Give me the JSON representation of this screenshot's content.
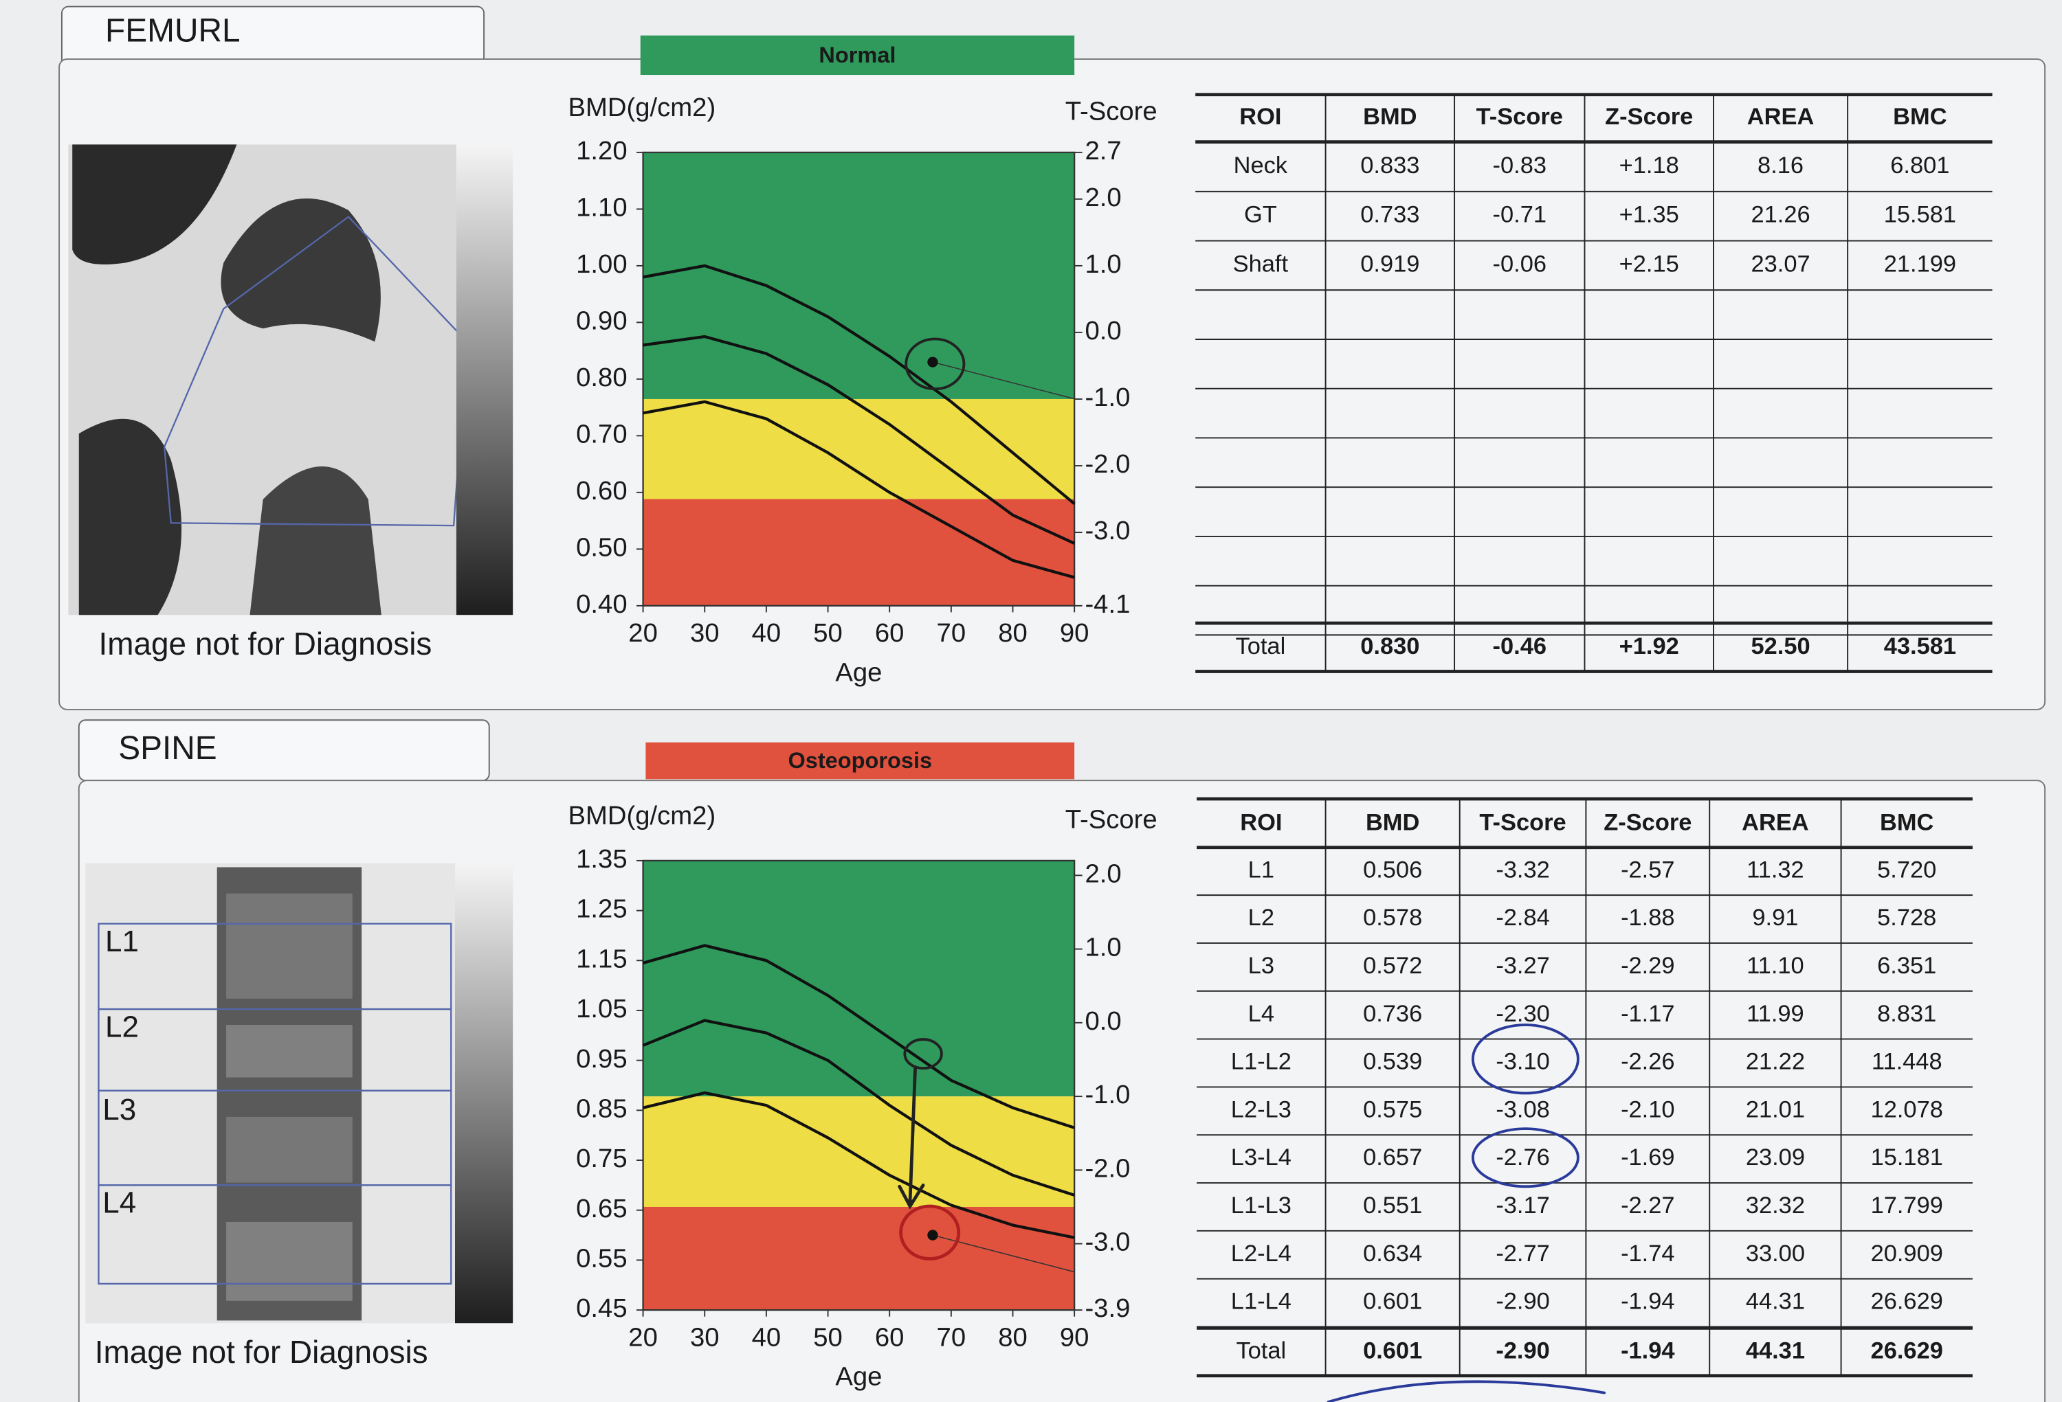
{
  "chart_data": [
    {
      "type": "line",
      "y_label": "BMD(g/cm2)",
      "y2_label": "T-Score",
      "x_label": "Age",
      "xlim": [
        20,
        90
      ],
      "xticks": [
        20,
        30,
        40,
        50,
        60,
        70,
        80,
        90
      ],
      "ylim": [
        0.4,
        1.2
      ],
      "yticks": [
        {
          "value": 1.2,
          "label": "1.20"
        },
        {
          "value": 1.1,
          "label": "1.10"
        },
        {
          "value": 1.0,
          "label": "1.00"
        },
        {
          "value": 0.9,
          "label": "0.90"
        },
        {
          "value": 0.8,
          "label": "0.80"
        },
        {
          "value": 0.7,
          "label": "0.70"
        },
        {
          "value": 0.6,
          "label": "0.60"
        },
        {
          "value": 0.5,
          "label": "0.50"
        },
        {
          "value": 0.4,
          "label": "0.40"
        }
      ],
      "y2lim": [
        -4.1,
        2.7
      ],
      "y2ticks": [
        2.7,
        {
          "value": 2,
          "label": "2.0"
        },
        {
          "value": 1,
          "label": "1.0"
        },
        {
          "value": 0,
          "label": "0.0"
        },
        {
          "value": -1,
          "label": "-1.0"
        },
        {
          "value": -2,
          "label": "-2.0"
        },
        {
          "value": -3,
          "label": "-3.0"
        },
        -4.1
      ],
      "zones": [
        {
          "from": -1.0,
          "to": 2.7,
          "color": "#2f9a5c"
        },
        {
          "from": -2.5,
          "to": -1.0,
          "color": "#efdd45"
        },
        {
          "from": -4.1,
          "to": -2.5,
          "color": "#e0523e"
        }
      ],
      "x": [
        20,
        30,
        40,
        50,
        60,
        70,
        80,
        90
      ],
      "series": [
        {
          "color": "#111111",
          "values": [
            0.98,
            1.0,
            0.965,
            0.91,
            0.84,
            0.76,
            0.67,
            0.58
          ]
        },
        {
          "color": "#111111",
          "values": [
            0.86,
            0.875,
            0.845,
            0.79,
            0.72,
            0.64,
            0.56,
            0.51
          ]
        },
        {
          "color": "#111111",
          "values": [
            0.74,
            0.76,
            0.73,
            0.67,
            0.6,
            0.54,
            0.48,
            0.45
          ]
        }
      ],
      "patient": {
        "color": "#111111",
        "x": [
          67
        ],
        "values": [
          0.83
        ]
      }
    },
    {
      "type": "line",
      "y_label": "BMD(g/cm2)",
      "y2_label": "T-Score",
      "x_label": "Age",
      "xlim": [
        20,
        90
      ],
      "xticks": [
        20,
        30,
        40,
        50,
        60,
        70,
        80,
        90
      ],
      "ylim": [
        0.45,
        1.35
      ],
      "yticks": [
        1.35,
        1.25,
        1.15,
        1.05,
        0.95,
        0.85,
        0.75,
        0.65,
        0.55,
        0.45
      ],
      "y2lim": [
        -3.9,
        2.2
      ],
      "y2ticks": [
        {
          "value": 2,
          "label": "2.0"
        },
        {
          "value": 1,
          "label": "1.0"
        },
        {
          "value": 0,
          "label": "0.0"
        },
        {
          "value": -1,
          "label": "-1.0"
        },
        {
          "value": -2,
          "label": "-2.0"
        },
        {
          "value": -3,
          "label": "-3.0"
        },
        -3.9
      ],
      "zones": [
        {
          "from": -1.0,
          "to": 2.2,
          "color": "#2f9a5c"
        },
        {
          "from": -2.5,
          "to": -1.0,
          "color": "#efdd45"
        },
        {
          "from": -3.9,
          "to": -2.5,
          "color": "#e0523e"
        }
      ],
      "x": [
        20,
        30,
        40,
        50,
        60,
        70,
        80,
        90
      ],
      "series": [
        {
          "color": "#111111",
          "values": [
            1.145,
            1.18,
            1.15,
            1.08,
            0.995,
            0.91,
            0.855,
            0.815
          ]
        },
        {
          "color": "#111111",
          "values": [
            0.98,
            1.03,
            1.005,
            0.95,
            0.86,
            0.78,
            0.72,
            0.68
          ]
        },
        {
          "color": "#111111",
          "values": [
            0.855,
            0.885,
            0.86,
            0.795,
            0.72,
            0.66,
            0.62,
            0.595
          ]
        }
      ],
      "patient": {
        "color": "#111111",
        "x": [
          67
        ],
        "values": [
          0.6
        ]
      }
    }
  ],
  "panels": [
    {
      "title": "FEMURL",
      "status": "Normal",
      "status_color": "#2f9a5c",
      "image_note": "Image not for Diagnosis",
      "table": {
        "header": [
          "ROI",
          "BMD",
          "T-Score",
          "Z-Score",
          "AREA",
          "BMC"
        ],
        "rows": [
          [
            "Neck",
            "0.833",
            "-0.83",
            "+1.18",
            "8.16",
            "6.801"
          ],
          [
            "GT",
            "0.733",
            "-0.71",
            "+1.35",
            "21.26",
            "15.581"
          ],
          [
            "Shaft",
            "0.919",
            "-0.06",
            "+2.15",
            "23.07",
            "21.199"
          ]
        ],
        "total": [
          "Total",
          "0.830",
          "-0.46",
          "+1.92",
          "52.50",
          "43.581"
        ]
      }
    },
    {
      "title": "SPINE",
      "status": "Osteoporosis",
      "status_color": "#e0523e",
      "image_note": "Image not for Diagnosis",
      "image_labels": [
        "L1",
        "L2",
        "L3",
        "L4"
      ],
      "table": {
        "header": [
          "ROI",
          "BMD",
          "T-Score",
          "Z-Score",
          "AREA",
          "BMC"
        ],
        "rows": [
          [
            "L1",
            "0.506",
            "-3.32",
            "-2.57",
            "11.32",
            "5.720"
          ],
          [
            "L2",
            "0.578",
            "-2.84",
            "-1.88",
            "9.91",
            "5.728"
          ],
          [
            "L3",
            "0.572",
            "-3.27",
            "-2.29",
            "11.10",
            "6.351"
          ],
          [
            "L4",
            "0.736",
            "-2.30",
            "-1.17",
            "11.99",
            "8.831"
          ],
          [
            "L1-L2",
            "0.539",
            "-3.10",
            "-2.26",
            "21.22",
            "11.448"
          ],
          [
            "L2-L3",
            "0.575",
            "-3.08",
            "-2.10",
            "21.01",
            "12.078"
          ],
          [
            "L3-L4",
            "0.657",
            "-2.76",
            "-1.69",
            "23.09",
            "15.181"
          ],
          [
            "L1-L3",
            "0.551",
            "-3.17",
            "-2.27",
            "32.32",
            "17.799"
          ],
          [
            "L2-L4",
            "0.634",
            "-2.77",
            "-1.74",
            "33.00",
            "20.909"
          ],
          [
            "L1-L4",
            "0.601",
            "-2.90",
            "-1.94",
            "44.31",
            "26.629"
          ]
        ],
        "total": [
          "Total",
          "0.601",
          "-2.90",
          "-1.94",
          "44.31",
          "26.629"
        ]
      }
    }
  ]
}
